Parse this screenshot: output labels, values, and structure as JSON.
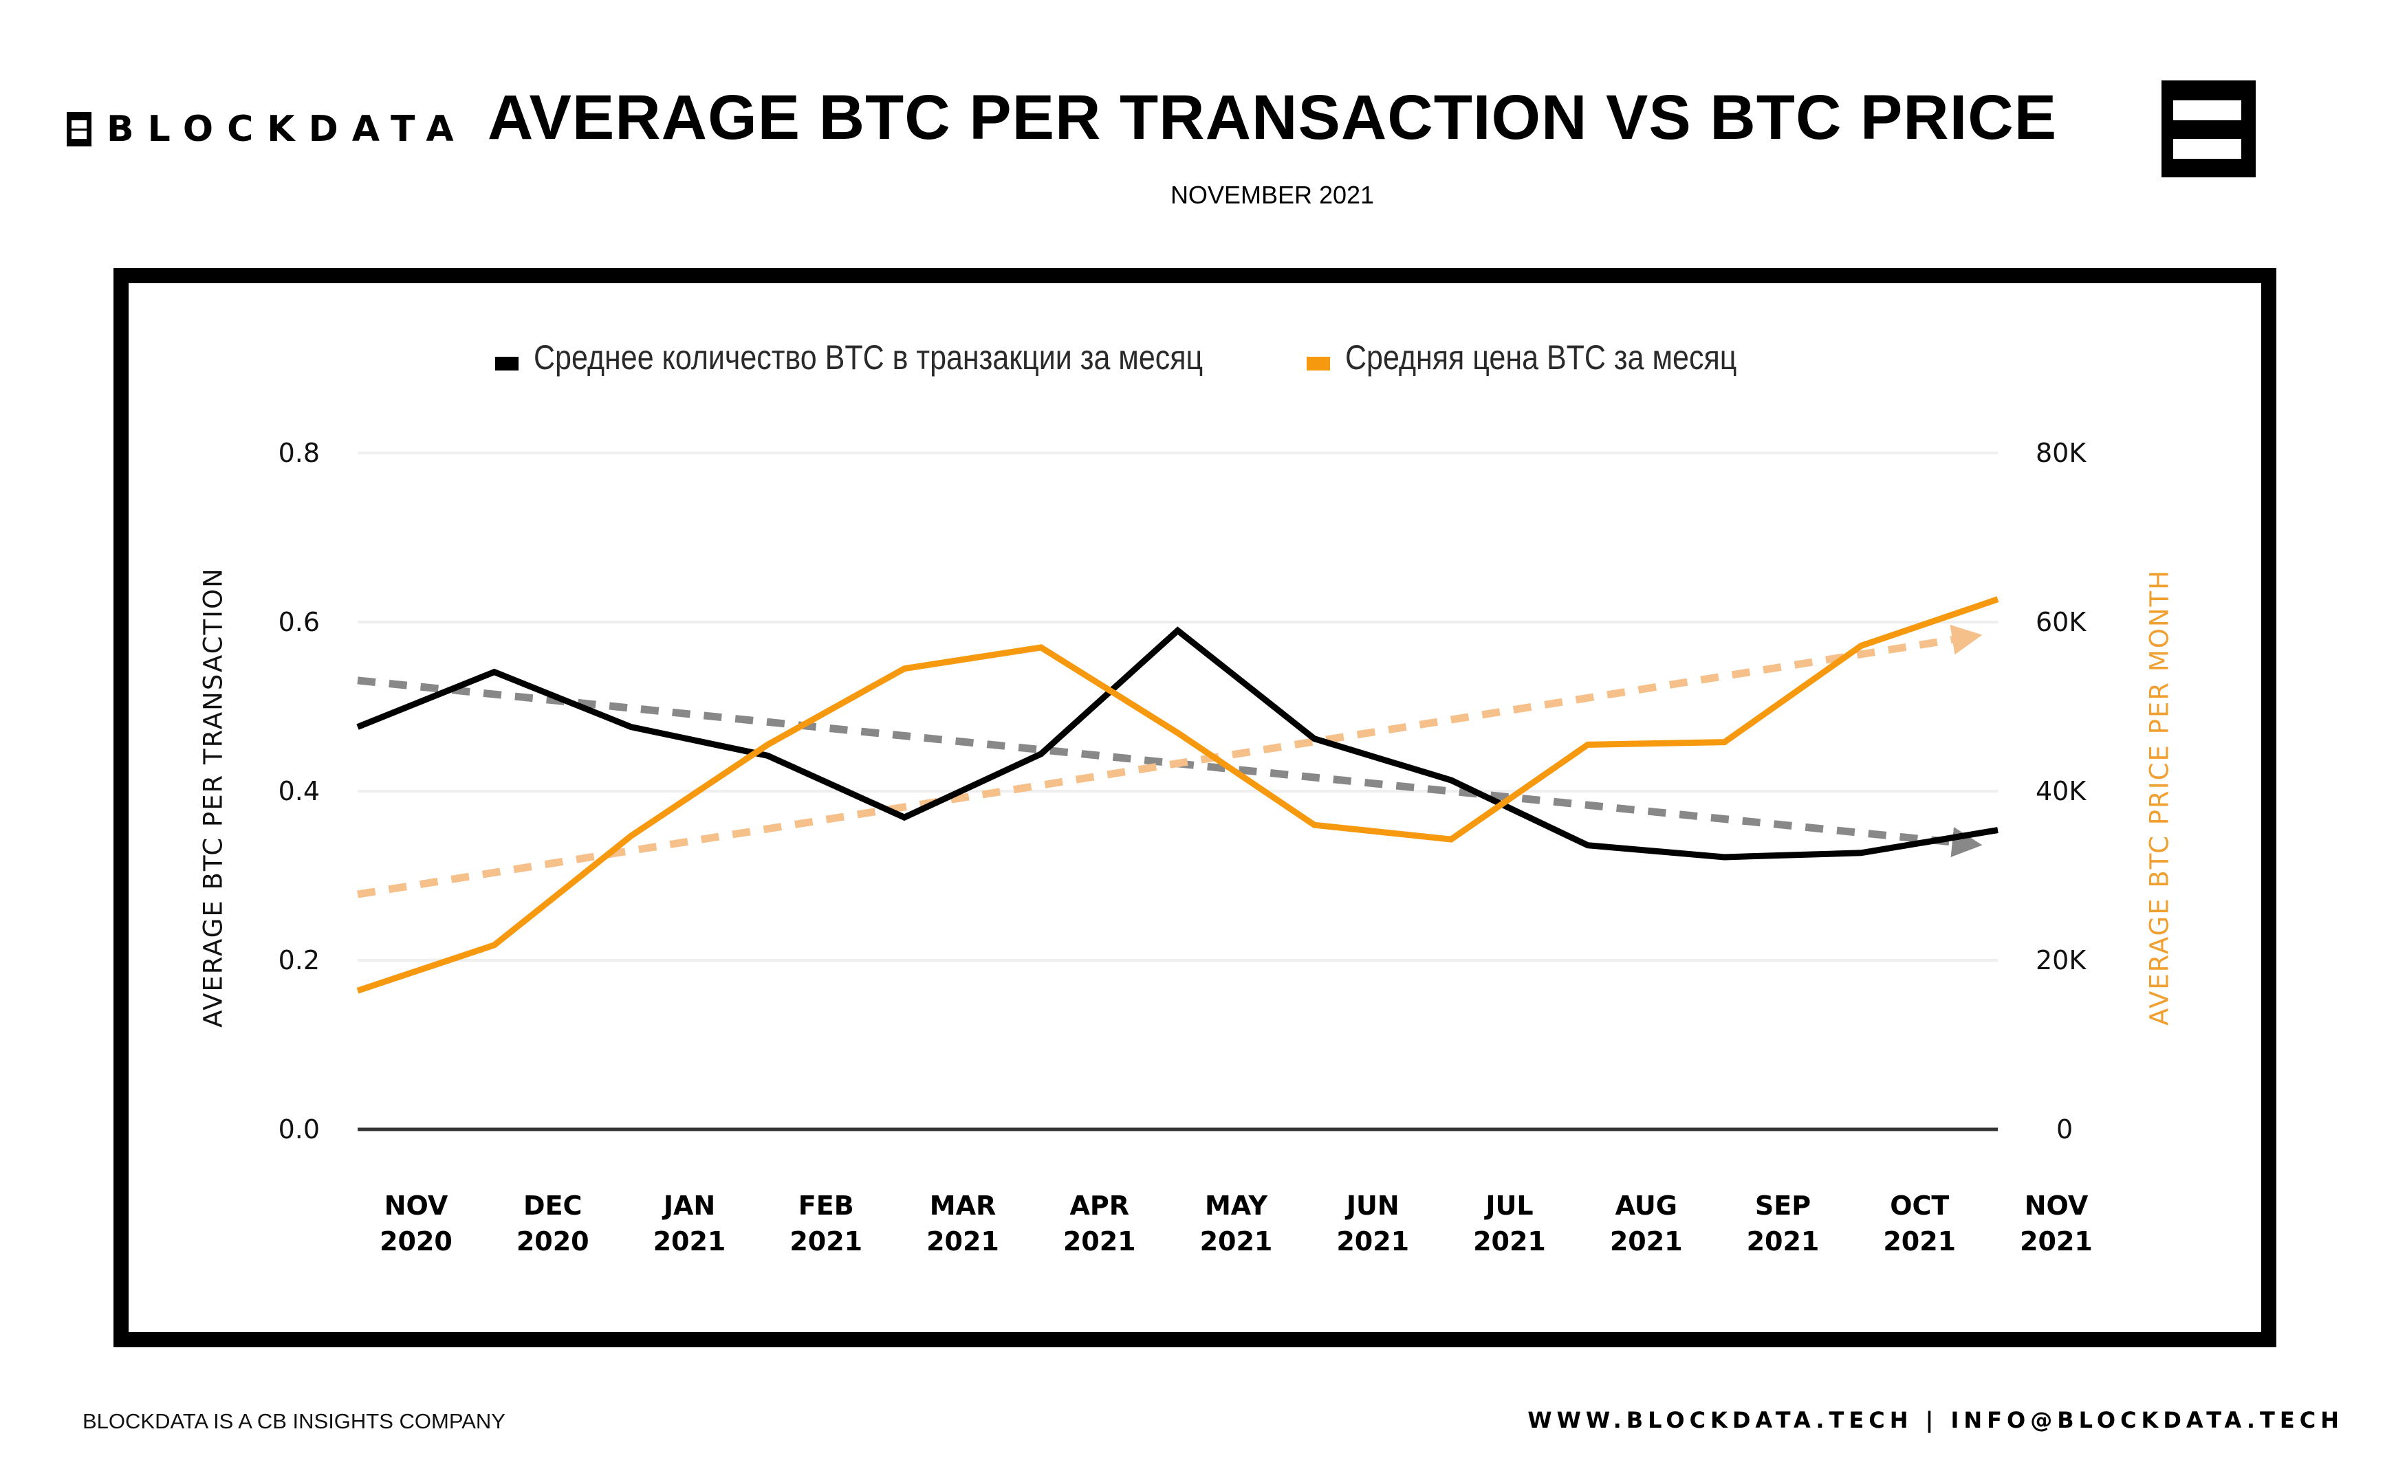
{
  "header": {
    "brand": "BLOCKDATA",
    "title": "AVERAGE BTC PER TRANSACTION VS BTC PRICE",
    "subtitle": "NOVEMBER 2021",
    "logo_icon": "blockdata-logo-icon"
  },
  "footer": {
    "left": "BLOCKDATA IS A CB INSIGHTS COMPANY",
    "right": "WWW.BLOCKDATA.TECH | INFO@BLOCKDATA.TECH"
  },
  "colors": {
    "btc_per_tx": "#000000",
    "btc_price": "#f7990f",
    "trend_btc_per_tx": "#888888",
    "trend_btc_price": "#f5c08a",
    "right_axis_title": "#f0a030",
    "grid": "#eeeeee",
    "frame": "#000000"
  },
  "chart_data": {
    "type": "line",
    "title": "AVERAGE BTC PER TRANSACTION VS BTC PRICE",
    "subtitle": "NOVEMBER 2021",
    "categories": [
      {
        "month": "NOV",
        "year": "2020"
      },
      {
        "month": "DEC",
        "year": "2020"
      },
      {
        "month": "JAN",
        "year": "2021"
      },
      {
        "month": "FEB",
        "year": "2021"
      },
      {
        "month": "MAR",
        "year": "2021"
      },
      {
        "month": "APR",
        "year": "2021"
      },
      {
        "month": "MAY",
        "year": "2021"
      },
      {
        "month": "JUN",
        "year": "2021"
      },
      {
        "month": "JUL",
        "year": "2021"
      },
      {
        "month": "AUG",
        "year": "2021"
      },
      {
        "month": "SEP",
        "year": "2021"
      },
      {
        "month": "OCT",
        "year": "2021"
      },
      {
        "month": "NOV",
        "year": "2021"
      }
    ],
    "series": [
      {
        "name": "Среднее количество BTC в транзакции за месяц",
        "axis": "left",
        "color": "#000000",
        "values": [
          0.476,
          0.541,
          0.476,
          0.442,
          0.369,
          0.444,
          0.59,
          0.462,
          0.413,
          0.336,
          0.322,
          0.327,
          0.354
        ]
      },
      {
        "name": "Средняя цена BTC за месяц",
        "axis": "right",
        "color": "#f7990f",
        "values": [
          16400,
          21800,
          34700,
          45500,
          54500,
          57000,
          46900,
          36000,
          34300,
          45500,
          45800,
          57200,
          62700
        ]
      }
    ],
    "trendlines": [
      {
        "of": "Среднее количество BTC в транзакции за месяц",
        "axis": "left",
        "start": 0.531,
        "end": 0.336,
        "color": "#888888",
        "style": "dashed-arrow"
      },
      {
        "of": "Средняя цена BTC за месяц",
        "axis": "right",
        "start": 27800,
        "end": 58500,
        "color": "#f5c08a",
        "style": "dashed-arrow"
      }
    ],
    "y_left": {
      "label": "AVERAGE BTC PER TRANSACTION",
      "range": [
        0,
        0.8
      ],
      "ticks": [
        {
          "v": 0.0,
          "label": "0.0"
        },
        {
          "v": 0.2,
          "label": "0.2"
        },
        {
          "v": 0.4,
          "label": "0.4"
        },
        {
          "v": 0.6,
          "label": "0.6"
        },
        {
          "v": 0.8,
          "label": "0.8"
        }
      ]
    },
    "y_right": {
      "label": "AVERAGE BTC PRICE PER MONTH",
      "range": [
        0,
        80000
      ],
      "ticks": [
        {
          "v": 0,
          "label": "0"
        },
        {
          "v": 20000,
          "label": "20K"
        },
        {
          "v": 40000,
          "label": "40K"
        },
        {
          "v": 60000,
          "label": "60K"
        },
        {
          "v": 80000,
          "label": "80K"
        }
      ]
    },
    "xlabel": "",
    "grid": true,
    "legend": {
      "position": "top-center"
    }
  }
}
